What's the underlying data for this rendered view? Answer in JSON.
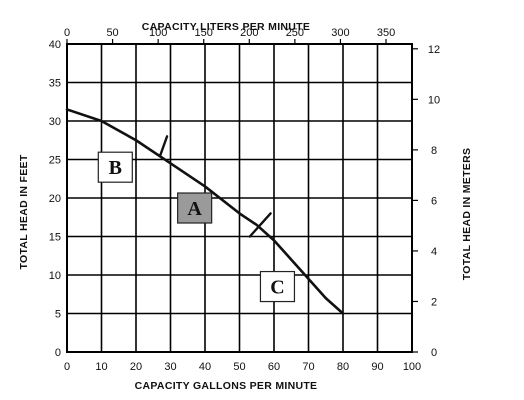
{
  "chart_data": {
    "type": "line",
    "title": "",
    "xlabel": "CAPACITY GALLONS PER MINUTE",
    "ylabel": "TOTAL HEAD IN FEET",
    "x2label": "CAPACITY LITERS PER MINUTE",
    "y2label": "TOTAL HEAD IN METERS",
    "xlim": [
      0,
      100
    ],
    "ylim": [
      0,
      40
    ],
    "x2lim": [
      0,
      378.5
    ],
    "y2lim": [
      0,
      12.19
    ],
    "x_ticks": [
      "0",
      "10",
      "20",
      "30",
      "40",
      "50",
      "60",
      "70",
      "80",
      "90",
      "100"
    ],
    "y_ticks": [
      "0",
      "5",
      "10",
      "15",
      "20",
      "25",
      "30",
      "35",
      "40"
    ],
    "x2_ticks": [
      "0",
      "50",
      "100",
      "150",
      "200",
      "250",
      "300",
      "350"
    ],
    "y2_ticks": [
      "0",
      "2",
      "4",
      "6",
      "8",
      "10",
      "12"
    ],
    "grid": true,
    "series": [
      {
        "x": [
          0,
          10,
          20,
          30,
          40,
          50,
          55,
          60,
          65,
          70,
          75,
          80
        ],
        "y": [
          31.5,
          30,
          27.5,
          24.5,
          21.5,
          18,
          16.5,
          14.5,
          12,
          9.5,
          7,
          5
        ]
      }
    ],
    "markers": [
      {
        "x": [
          27,
          29
        ],
        "y": [
          25.5,
          28
        ]
      },
      {
        "x": [
          53,
          59
        ],
        "y": [
          15,
          18
        ]
      }
    ],
    "regions": [
      {
        "label": "A",
        "x": 37,
        "y": 18.7,
        "shaded": true
      },
      {
        "label": "B",
        "x": 14,
        "y": 24,
        "shaded": false
      },
      {
        "label": "C",
        "x": 61,
        "y": 8.5,
        "shaded": false
      }
    ]
  }
}
